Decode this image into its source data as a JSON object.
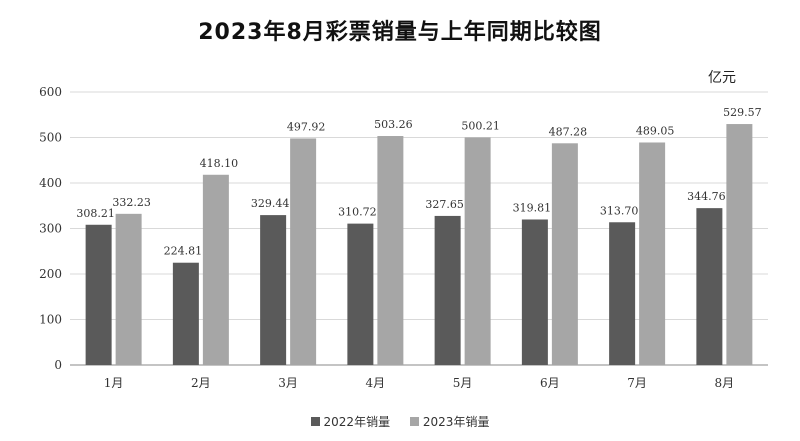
{
  "chart_data": {
    "type": "bar",
    "title": "2023年8月彩票销量与上年同期比较图",
    "unit": "亿元",
    "categories": [
      "1月",
      "2月",
      "3月",
      "4月",
      "5月",
      "6月",
      "7月",
      "8月"
    ],
    "series": [
      {
        "name": "2022年销量",
        "color": "#5a5a5a",
        "values": [
          308.21,
          224.81,
          329.44,
          310.72,
          327.65,
          319.81,
          313.7,
          344.76
        ],
        "labels": [
          "308.21",
          "224.81",
          "329.44",
          "310.72",
          "327.65",
          "319.81",
          "313.70",
          "344.76"
        ]
      },
      {
        "name": "2023年销量",
        "color": "#a6a6a6",
        "values": [
          332.23,
          418.1,
          497.92,
          503.26,
          500.21,
          487.28,
          489.05,
          529.57
        ],
        "labels": [
          "332.23",
          "418.10",
          "497.92",
          "503.26",
          "500.21",
          "487.28",
          "489.05",
          "529.57"
        ]
      }
    ],
    "ylim": [
      0,
      600
    ],
    "yticks": [
      "0",
      "100",
      "200",
      "300",
      "400",
      "500",
      "600"
    ],
    "grid": true,
    "legend_position": "bottom"
  }
}
